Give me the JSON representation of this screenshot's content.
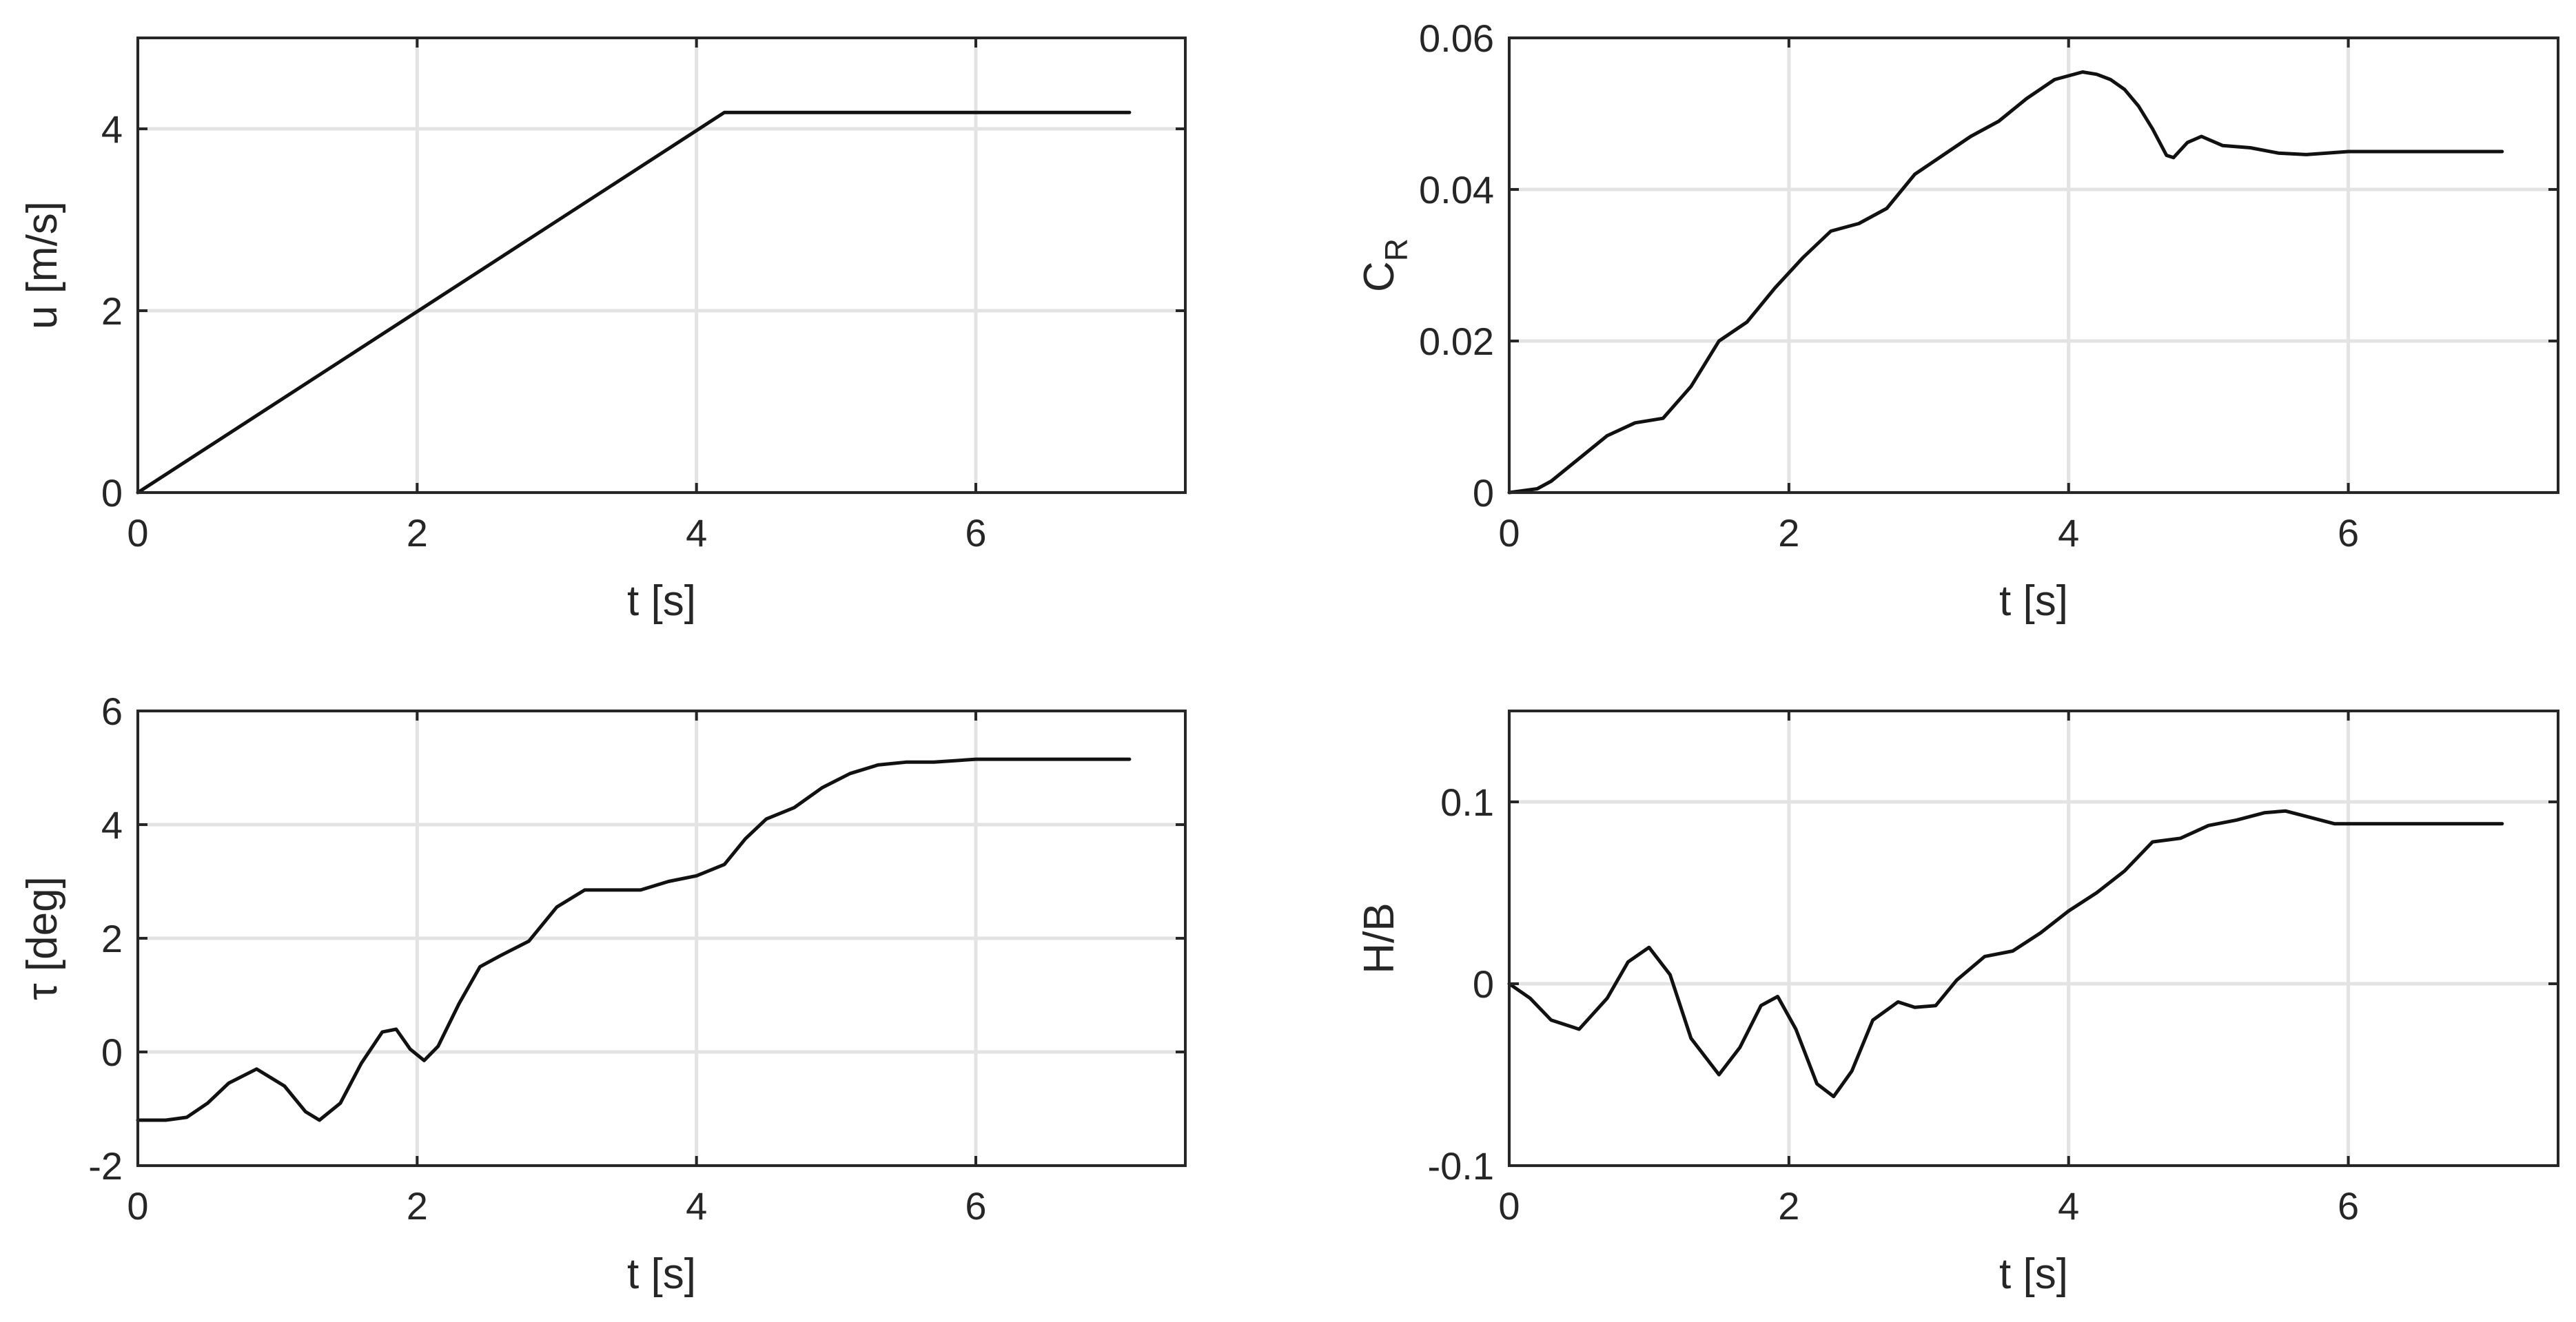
{
  "chart_data": [
    {
      "type": "line",
      "ylabel": "u [m/s]",
      "xlabel": "t [s]",
      "xlim": [
        0,
        7.5
      ],
      "ylim": [
        0,
        5
      ],
      "xticks": [
        "0",
        "2",
        "4",
        "6"
      ],
      "yticks": [
        "0",
        "2",
        "4"
      ],
      "grid": true,
      "series": [
        {
          "x": [
            0,
            4.2,
            4.3,
            7.1
          ],
          "y": [
            0,
            4.18,
            4.18,
            4.18
          ]
        }
      ]
    },
    {
      "type": "line",
      "ylabel": "C",
      "ylabel_sub": "R",
      "xlabel": "t [s]",
      "xlim": [
        0,
        7.5
      ],
      "ylim": [
        0,
        0.06
      ],
      "xticks": [
        "0",
        "2",
        "4",
        "6"
      ],
      "yticks": [
        "0",
        "0.02",
        "0.04",
        "0.06"
      ],
      "grid": true,
      "series": [
        {
          "x": [
            0,
            0.2,
            0.3,
            0.5,
            0.7,
            0.9,
            1.1,
            1.3,
            1.5,
            1.7,
            1.9,
            2.1,
            2.3,
            2.5,
            2.7,
            2.9,
            3.1,
            3.3,
            3.5,
            3.7,
            3.9,
            4.0,
            4.1,
            4.2,
            4.3,
            4.4,
            4.5,
            4.6,
            4.7,
            4.75,
            4.85,
            4.95,
            5.1,
            5.3,
            5.5,
            5.7,
            6.0,
            6.5,
            7.1
          ],
          "y": [
            0,
            0.0005,
            0.0015,
            0.0045,
            0.0075,
            0.0092,
            0.0098,
            0.014,
            0.02,
            0.0225,
            0.027,
            0.031,
            0.0345,
            0.0355,
            0.0375,
            0.042,
            0.0445,
            0.047,
            0.049,
            0.052,
            0.0545,
            0.055,
            0.0555,
            0.0552,
            0.0545,
            0.0532,
            0.051,
            0.048,
            0.0445,
            0.0442,
            0.0462,
            0.047,
            0.0458,
            0.0455,
            0.0448,
            0.0446,
            0.045,
            0.045,
            0.045
          ]
        }
      ]
    },
    {
      "type": "line",
      "ylabel": "τ [deg]",
      "xlabel": "t [s]",
      "xlim": [
        0,
        7.5
      ],
      "ylim": [
        -2,
        6
      ],
      "xticks": [
        "0",
        "2",
        "4",
        "6"
      ],
      "yticks": [
        "-2",
        "0",
        "2",
        "4",
        "6"
      ],
      "grid": true,
      "series": [
        {
          "x": [
            0,
            0.2,
            0.35,
            0.5,
            0.65,
            0.85,
            1.05,
            1.2,
            1.3,
            1.45,
            1.6,
            1.75,
            1.85,
            1.95,
            2.05,
            2.15,
            2.3,
            2.45,
            2.6,
            2.8,
            3.0,
            3.2,
            3.4,
            3.6,
            3.8,
            4.0,
            4.2,
            4.35,
            4.5,
            4.7,
            4.9,
            5.1,
            5.3,
            5.5,
            5.7,
            6.0,
            6.5,
            7.1
          ],
          "y": [
            -1.2,
            -1.2,
            -1.15,
            -0.9,
            -0.55,
            -0.3,
            -0.6,
            -1.05,
            -1.2,
            -0.9,
            -0.2,
            0.35,
            0.4,
            0.05,
            -0.15,
            0.1,
            0.85,
            1.5,
            1.7,
            1.95,
            2.55,
            2.85,
            2.85,
            2.85,
            3.0,
            3.1,
            3.3,
            3.75,
            4.1,
            4.3,
            4.65,
            4.9,
            5.05,
            5.1,
            5.1,
            5.15,
            5.15,
            5.15
          ]
        }
      ]
    },
    {
      "type": "line",
      "ylabel": "H/B",
      "xlabel": "t [s]",
      "xlim": [
        0,
        7.5
      ],
      "ylim": [
        -0.1,
        0.15
      ],
      "xticks": [
        "0",
        "2",
        "4",
        "6"
      ],
      "yticks": [
        "-0.1",
        "0",
        "0.1"
      ],
      "grid": true,
      "series": [
        {
          "x": [
            0,
            0.15,
            0.3,
            0.5,
            0.7,
            0.85,
            1.0,
            1.15,
            1.3,
            1.5,
            1.65,
            1.8,
            1.92,
            2.05,
            2.2,
            2.32,
            2.45,
            2.6,
            2.78,
            2.9,
            3.05,
            3.2,
            3.4,
            3.6,
            3.8,
            4.0,
            4.2,
            4.4,
            4.6,
            4.8,
            5.0,
            5.2,
            5.4,
            5.55,
            5.7,
            5.9,
            6.2,
            6.6,
            7.1
          ],
          "y": [
            0,
            -0.008,
            -0.02,
            -0.025,
            -0.008,
            0.012,
            0.02,
            0.005,
            -0.03,
            -0.05,
            -0.035,
            -0.012,
            -0.007,
            -0.025,
            -0.055,
            -0.062,
            -0.048,
            -0.02,
            -0.01,
            -0.013,
            -0.012,
            0.002,
            0.015,
            0.018,
            0.028,
            0.04,
            0.05,
            0.062,
            0.078,
            0.08,
            0.087,
            0.09,
            0.094,
            0.095,
            0.092,
            0.088,
            0.088,
            0.088,
            0.088
          ]
        }
      ]
    }
  ]
}
